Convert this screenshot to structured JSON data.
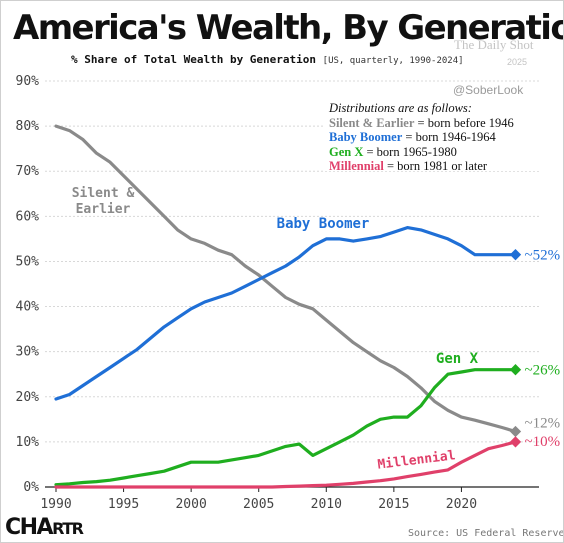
{
  "header": {
    "title": "America's Wealth, By Generation",
    "subtitle": "% Share of Total Wealth by Generation",
    "subtitle_meta": "[US, quarterly, 1990-2024]"
  },
  "watermarks": {
    "publisher": "The Daily Shot",
    "date": "2025",
    "handle": "@SoberLook"
  },
  "legend": {
    "heading": "Distributions are as follows:",
    "rows": [
      {
        "key": "Silent & Earlier",
        "desc": "= born before 1946",
        "color": "#8a8a8a"
      },
      {
        "key": "Baby Boomer",
        "desc": "= born 1946-1964",
        "color": "#1f6fd6"
      },
      {
        "key": "Gen X",
        "desc": "= born 1965-1980",
        "color": "#1fae1f"
      },
      {
        "key": "Millennial",
        "desc": "= born 1981 or later",
        "color": "#e0406a"
      }
    ]
  },
  "footer": {
    "brand_big": "CHA",
    "brand_small": "RTR",
    "source": "Source: US Federal Reserve"
  },
  "chart_data": {
    "type": "line",
    "xlim": [
      1990,
      2025
    ],
    "ylim": [
      0,
      90
    ],
    "x_ticks": [
      1990,
      1995,
      2000,
      2005,
      2010,
      2015,
      2020
    ],
    "y_ticks": [
      0,
      10,
      20,
      30,
      40,
      50,
      60,
      70,
      80,
      90
    ],
    "y_tick_suffix": "%",
    "grid": "horizontal",
    "series": [
      {
        "name": "Silent & Earlier",
        "label": "Silent &\nEarlier",
        "end_label": "~12%",
        "color": "#8a8a8a",
        "x": [
          1990,
          1991,
          1992,
          1993,
          1994,
          1995,
          1996,
          1997,
          1998,
          1999,
          2000,
          2001,
          2002,
          2003,
          2004,
          2005,
          2006,
          2007,
          2008,
          2009,
          2010,
          2011,
          2012,
          2013,
          2014,
          2015,
          2016,
          2017,
          2018,
          2019,
          2020,
          2021,
          2022,
          2023,
          2024
        ],
        "y": [
          80,
          79,
          77,
          74,
          72,
          69,
          66,
          63,
          60,
          57,
          55,
          54,
          52.5,
          51.5,
          49,
          47,
          44.5,
          42,
          40.5,
          39.5,
          37,
          34.5,
          32,
          30,
          28,
          26.5,
          24.5,
          22,
          19,
          17,
          15.5,
          14.8,
          14,
          13.2,
          12.3
        ]
      },
      {
        "name": "Baby Boomer",
        "label": "Baby Boomer",
        "end_label": "~52%",
        "color": "#1f6fd6",
        "x": [
          1990,
          1991,
          1992,
          1993,
          1994,
          1995,
          1996,
          1997,
          1998,
          1999,
          2000,
          2001,
          2002,
          2003,
          2004,
          2005,
          2006,
          2007,
          2008,
          2009,
          2010,
          2011,
          2012,
          2013,
          2014,
          2015,
          2016,
          2017,
          2018,
          2019,
          2020,
          2021,
          2022,
          2023,
          2024
        ],
        "y": [
          19.5,
          20.5,
          22.5,
          24.5,
          26.5,
          28.5,
          30.5,
          33,
          35.5,
          37.5,
          39.5,
          41,
          42,
          43,
          44.5,
          46,
          47.5,
          49,
          51,
          53.5,
          55,
          55,
          54.5,
          55,
          55.5,
          56.5,
          57.5,
          57,
          56,
          55,
          53.5,
          51.5,
          51.5,
          51.5,
          51.5
        ]
      },
      {
        "name": "Gen X",
        "label": "Gen X",
        "end_label": "~26%",
        "color": "#1fae1f",
        "x": [
          1990,
          1991,
          1992,
          1993,
          1994,
          1995,
          1996,
          1997,
          1998,
          1999,
          2000,
          2001,
          2002,
          2003,
          2004,
          2005,
          2006,
          2007,
          2008,
          2009,
          2010,
          2011,
          2012,
          2013,
          2014,
          2015,
          2016,
          2017,
          2018,
          2019,
          2020,
          2021,
          2022,
          2023,
          2024
        ],
        "y": [
          0.5,
          0.7,
          1,
          1.2,
          1.5,
          2,
          2.5,
          3,
          3.5,
          4.5,
          5.5,
          5.5,
          5.5,
          6,
          6.5,
          7,
          8,
          9,
          9.5,
          7,
          8.5,
          10,
          11.5,
          13.5,
          15,
          15.5,
          15.5,
          18,
          22,
          25,
          25.5,
          26,
          26,
          26,
          26
        ]
      },
      {
        "name": "Millennial",
        "label": "Millennial",
        "end_label": "~10%",
        "color": "#e0406a",
        "x": [
          1990,
          1995,
          2000,
          2005,
          2006,
          2007,
          2008,
          2009,
          2010,
          2011,
          2012,
          2013,
          2014,
          2015,
          2016,
          2017,
          2018,
          2019,
          2020,
          2021,
          2022,
          2023,
          2024
        ],
        "y": [
          0,
          0,
          0,
          0,
          0,
          0.1,
          0.2,
          0.3,
          0.4,
          0.6,
          0.8,
          1.1,
          1.4,
          1.8,
          2.3,
          2.8,
          3.3,
          3.8,
          5.5,
          7,
          8.5,
          9.2,
          10
        ]
      }
    ]
  }
}
